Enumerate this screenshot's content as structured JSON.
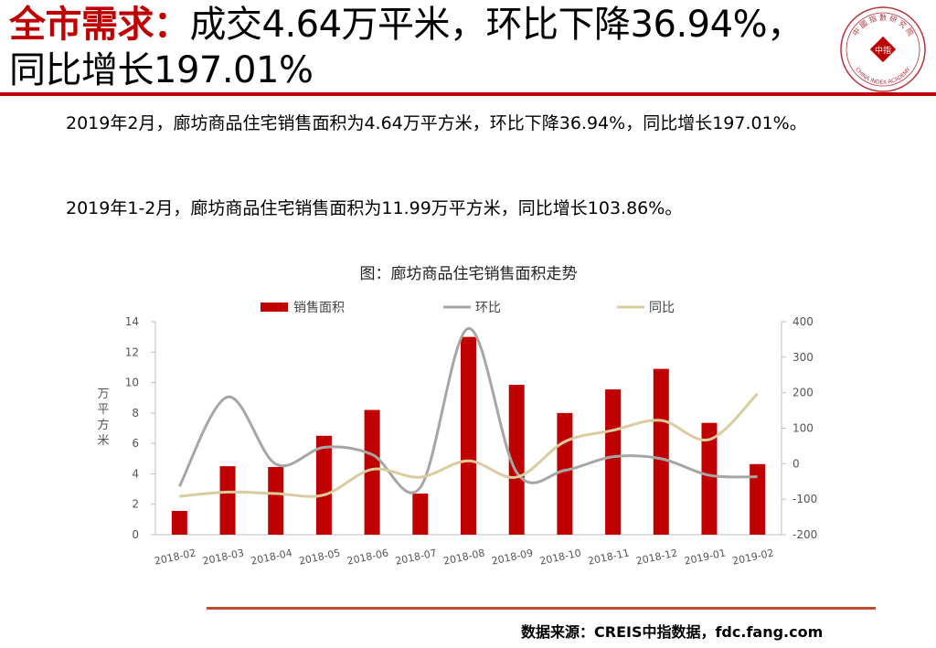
{
  "header": {
    "title_accent": "全市需求：",
    "title_rest": "成交4.64万平米，环比下降36.94%，同比增长197.01%",
    "logo": {
      "icon": "china-index-academy-seal",
      "top_text": "中 國 指 數 研 究 院",
      "bottom_text": "CHINA INDEX ACADEMY",
      "center_text": "中指"
    }
  },
  "body": {
    "para1": "2019年2月，廊坊商品住宅销售面积为4.64万平方米，环比下降36.94%，同比增长197.01%。",
    "para2": "2019年1-2月，廊坊商品住宅销售面积为11.99万平方米，同比增长103.86%。"
  },
  "footer": {
    "source": "数据来源：CREIS中指数据，fdc.fang.com"
  },
  "colors": {
    "accent": "#c00000",
    "bar": "#c00000",
    "mom_line": "#a6a6a6",
    "yoy_line": "#d9cc9e",
    "bottom_rule": "#c0502a"
  },
  "chart_data": {
    "type": "bar",
    "title": "图：廊坊商品住宅销售面积走势",
    "categories": [
      "2018-02",
      "2018-03",
      "2018-04",
      "2018-05",
      "2018-06",
      "2018-07",
      "2018-08",
      "2018-09",
      "2018-10",
      "2018-11",
      "2018-12",
      "2019-01",
      "2019-02"
    ],
    "series": [
      {
        "name": "销售面积",
        "type": "bar",
        "axis": "left",
        "values": [
          1.56,
          4.5,
          4.45,
          6.5,
          8.2,
          2.7,
          13.0,
          9.85,
          8.0,
          9.55,
          10.9,
          7.35,
          4.64
        ]
      },
      {
        "name": "环比",
        "type": "line",
        "axis": "right",
        "values": [
          -64.0,
          188.0,
          -1.1,
          46.0,
          26.0,
          -67.1,
          381.0,
          -24.2,
          -18.8,
          19.4,
          14.1,
          -32.6,
          -36.94
        ]
      },
      {
        "name": "同比",
        "type": "line",
        "axis": "right",
        "values": [
          -92.0,
          -80.0,
          -84.0,
          -88.0,
          -16.0,
          -38.0,
          8.0,
          -38.0,
          62.0,
          94.0,
          122.0,
          68.0,
          197.01
        ]
      }
    ],
    "ylabel": "万平方米",
    "y2label": "%",
    "ylim": [
      0,
      14
    ],
    "y_ticks": [
      0,
      2,
      4,
      6,
      8,
      10,
      12,
      14
    ],
    "y2lim": [
      -200,
      400
    ],
    "y2_ticks": [
      -200,
      -100,
      0,
      100,
      200,
      300,
      400
    ],
    "legend_position": "top",
    "grid": false
  }
}
